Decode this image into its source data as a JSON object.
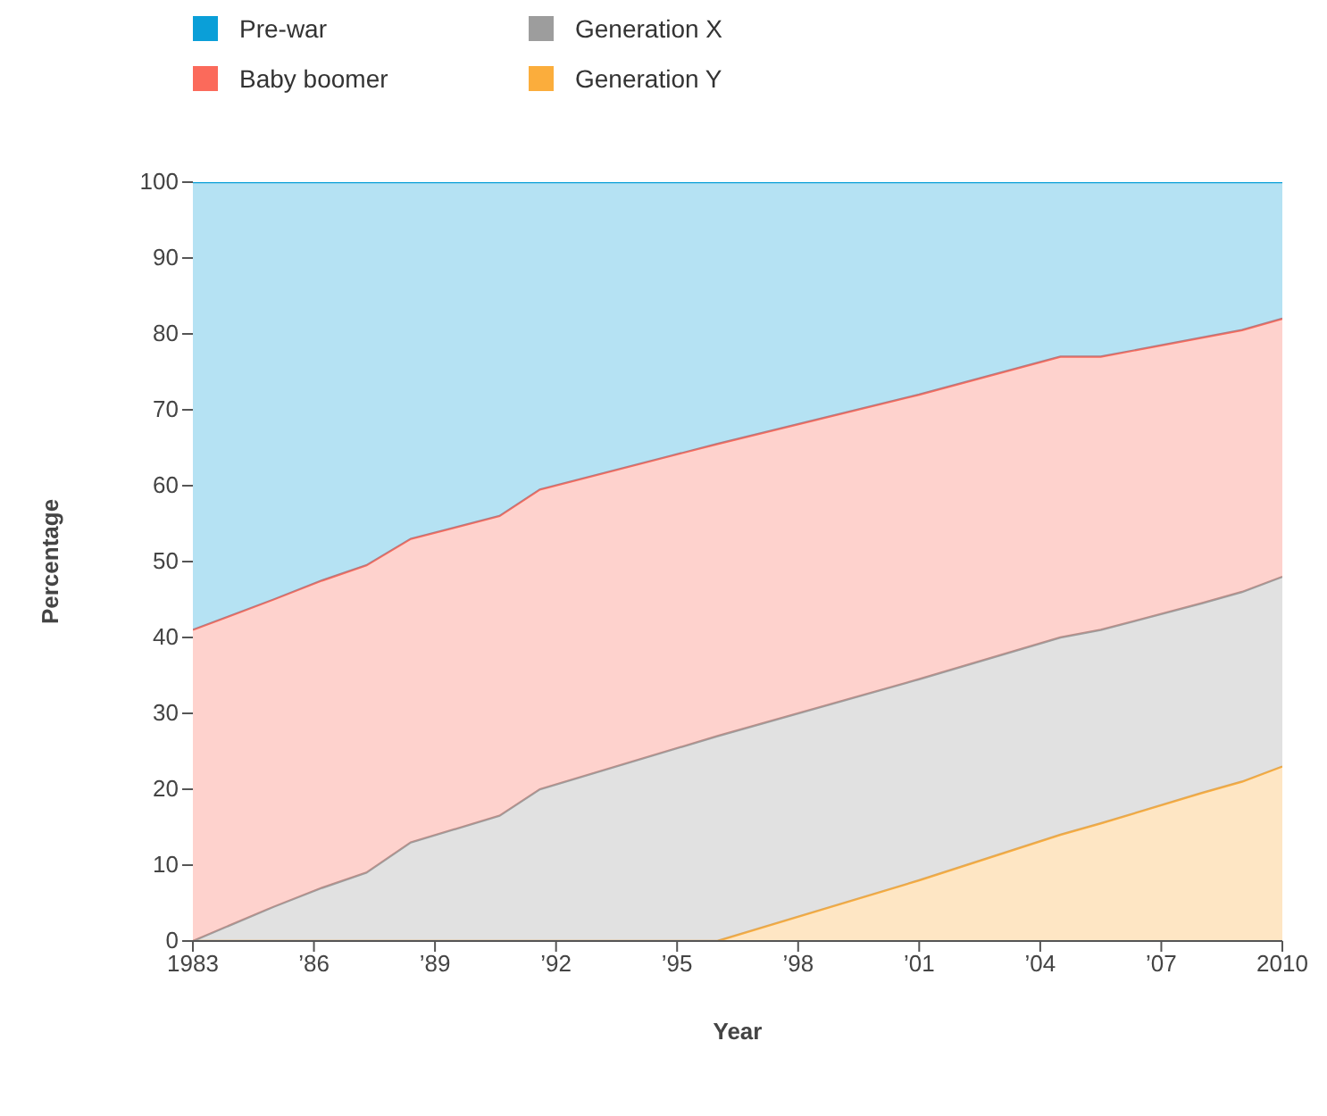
{
  "chart_data": {
    "type": "area",
    "stacked": true,
    "xlabel": "Year",
    "ylabel": "Percentage",
    "legend": "top left",
    "x": [
      1983,
      1985,
      1986.2,
      1987.3,
      1988.4,
      1990.6,
      1991.6,
      1996,
      2001,
      2004.5,
      2005.5,
      2008,
      2009,
      2010
    ],
    "series": [
      {
        "name": "Generation Y",
        "color": "#fbad3c",
        "values": [
          0,
          0,
          0,
          0,
          0,
          0,
          0,
          0,
          8,
          14,
          15.5,
          19.5,
          21,
          23
        ]
      },
      {
        "name": "Generation X",
        "color": "#9d9d9d",
        "values": [
          0,
          4.5,
          7,
          9,
          13,
          16.5,
          20,
          27,
          26.5,
          26,
          25.5,
          25,
          25,
          25
        ]
      },
      {
        "name": "Baby boomer",
        "color": "#fb6a5b",
        "values": [
          41,
          40.5,
          40.5,
          40.5,
          40,
          39.5,
          39.5,
          38.5,
          37.5,
          37,
          36,
          35,
          34.5,
          34
        ]
      },
      {
        "name": "Pre-war",
        "color": "#0a9fd8",
        "values": [
          59,
          55,
          52.5,
          50.5,
          47,
          44,
          40.5,
          34.5,
          28,
          23,
          23,
          20.5,
          19.5,
          18
        ]
      }
    ],
    "xlim": [
      1983,
      2010
    ],
    "xticks": [
      1983,
      {
        "value": 1986,
        "label": "’86"
      },
      {
        "value": 1989,
        "label": "’89"
      },
      {
        "value": 1992,
        "label": "’92"
      },
      {
        "value": 1995,
        "label": "’95"
      },
      {
        "value": 1998,
        "label": "’98"
      },
      {
        "value": 2001,
        "label": "’01"
      },
      {
        "value": 2004,
        "label": "’04"
      },
      {
        "value": 2007,
        "label": "’07"
      },
      2010
    ],
    "ylim": [
      0,
      100
    ],
    "yticks": [
      0,
      10,
      20,
      30,
      40,
      50,
      60,
      70,
      80,
      90,
      100
    ],
    "grid": false
  }
}
